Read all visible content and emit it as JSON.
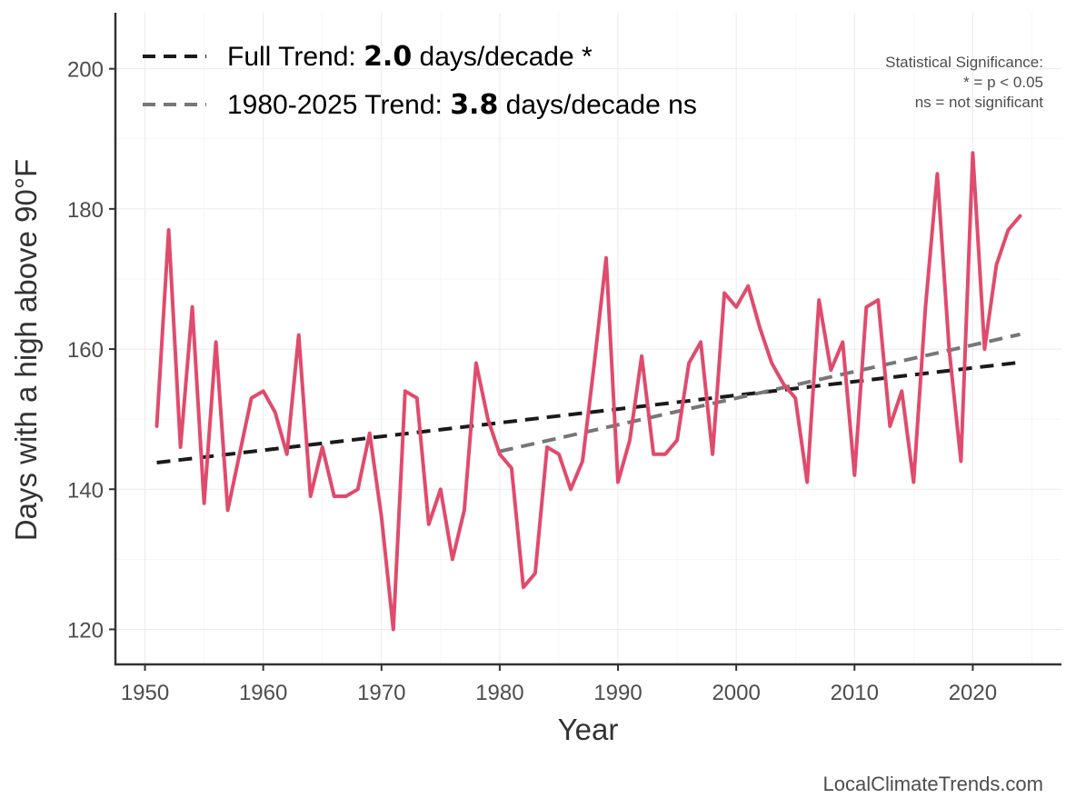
{
  "chart_data": {
    "type": "line",
    "xlabel": "Year",
    "ylabel": "Days with a high above 90°F",
    "xlim": [
      1947.5,
      2027.5
    ],
    "ylim": [
      115,
      208
    ],
    "x_ticks": [
      1950,
      1960,
      1970,
      1980,
      1990,
      2000,
      2010,
      2020
    ],
    "y_ticks": [
      120,
      140,
      160,
      180,
      200
    ],
    "grid": true,
    "legend_position": "top-left",
    "colors": {
      "series": "#e04b6d",
      "full_trend": "#1a1a1a",
      "recent_trend": "#777777"
    },
    "series": [
      {
        "x": [
          1951,
          1952,
          1953,
          1954,
          1955,
          1956,
          1957,
          1958,
          1959,
          1960,
          1961,
          1962,
          1963,
          1964,
          1965,
          1966,
          1967,
          1968,
          1969,
          1970,
          1971,
          1972,
          1973,
          1974,
          1975,
          1976,
          1977,
          1978,
          1979,
          1980,
          1981,
          1982,
          1983,
          1984,
          1985,
          1986,
          1987,
          1988,
          1989,
          1990,
          1991,
          1992,
          1993,
          1994,
          1995,
          1996,
          1997,
          1998,
          1999,
          2000,
          2001,
          2002,
          2003,
          2004,
          2005,
          2006,
          2007,
          2008,
          2009,
          2010,
          2011,
          2012,
          2013,
          2014,
          2015,
          2016,
          2017,
          2018,
          2019,
          2020,
          2021,
          2022,
          2023,
          2024
        ],
        "values": [
          149,
          177,
          146,
          166,
          138,
          161,
          137,
          145,
          153,
          154,
          151,
          145,
          162,
          139,
          146,
          139,
          139,
          140,
          148,
          136,
          120,
          154,
          153,
          135,
          140,
          130,
          137,
          158,
          150,
          145,
          143,
          126,
          128,
          146,
          145,
          140,
          144,
          158,
          173,
          141,
          147,
          159,
          145,
          145,
          147,
          158,
          161,
          145,
          168,
          166,
          169,
          163,
          158,
          155,
          153,
          141,
          167,
          157,
          161,
          142,
          166,
          167,
          149,
          154,
          141,
          166,
          185,
          160,
          144,
          188,
          160,
          172,
          177,
          179
        ]
      }
    ],
    "trends": [
      {
        "label_prefix": "Full Trend: ",
        "value_text": "2.0",
        "label_suffix": " days/decade *",
        "x": [
          1951,
          2024
        ],
        "y": [
          143.8,
          158.1
        ],
        "style": "dashed"
      },
      {
        "label_prefix": "1980-2025 Trend: ",
        "value_text": "3.8",
        "label_suffix": " days/decade ns",
        "x": [
          1980,
          2024
        ],
        "y": [
          145.4,
          162.1
        ],
        "style": "dashed"
      }
    ],
    "significance_note": [
      "Statistical Significance:",
      "* = p < 0.05",
      "ns = not significant"
    ],
    "credit": "LocalClimateTrends.com"
  }
}
